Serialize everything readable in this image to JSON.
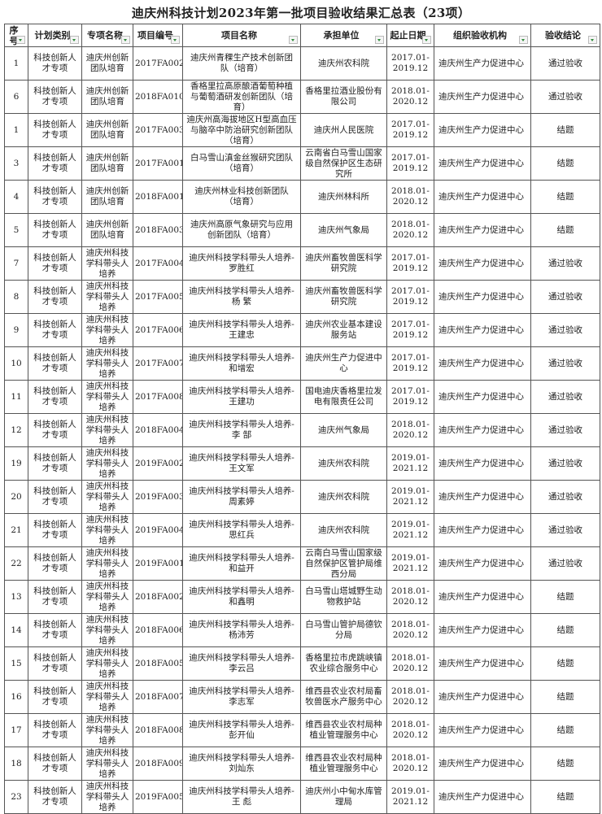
{
  "title": "迪庆州科技计划2023年第一批项目验收结果汇总表（23项）",
  "headers": [
    "序号",
    "计划类别",
    "专项名称",
    "项目编号",
    "项目名称",
    "承担单位",
    "起止日期",
    "组织验收机构",
    "验收结论"
  ],
  "filter_icon": "dropdown-filter-icon",
  "filter_color": "#2e8b3a",
  "rows": [
    {
      "no": "1",
      "category": "科技创新人才专项",
      "special": "迪庆州创新团队培育",
      "code": "2017FA002",
      "name": "迪庆州青稞生产技术创新团队（培育）",
      "unit": "迪庆州农科院",
      "date": "2017.01-2019.12",
      "org": "迪庆州生产力促进中心",
      "result": "通过验收"
    },
    {
      "no": "6",
      "category": "科技创新人才专项",
      "special": "迪庆州创新团队培育",
      "code": "2018FA010",
      "name": "香格里拉高原酿酒葡萄种植与葡萄酒研发创新团队（培育）",
      "unit": "香格里拉酒业股份有限公司",
      "date": "2018.01-2020.12",
      "org": "迪庆州生产力促进中心",
      "result": "通过验收"
    },
    {
      "no": "1",
      "category": "科技创新人才专项",
      "special": "迪庆州创新团队培育",
      "code": "2017FA003",
      "name": "迪庆州高海拔地区H型高血压与脑卒中防治研究创新团队（培育）",
      "unit": "迪庆州人民医院",
      "date": "2017.01-2019.12",
      "org": "迪庆州生产力促进中心",
      "result": "结题"
    },
    {
      "no": "3",
      "category": "科技创新人才专项",
      "special": "迪庆州创新团队培育",
      "code": "2017FA001",
      "name": "白马雪山滇金丝猴研究团队（培育）",
      "unit": "云南省白马雪山国家级自然保护区生态研究所",
      "date": "2017.01-2019.12",
      "org": "迪庆州生产力促进中心",
      "result": "结题"
    },
    {
      "no": "4",
      "category": "科技创新人才专项",
      "special": "迪庆州创新团队培育",
      "code": "2018FA001",
      "name": "迪庆州林业科技创新团队（培育）",
      "unit": "迪庆州林科所",
      "date": "2018.01-2020.12",
      "org": "迪庆州生产力促进中心",
      "result": "结题"
    },
    {
      "no": "5",
      "category": "科技创新人才专项",
      "special": "迪庆州创新团队培育",
      "code": "2018FA003",
      "name": "迪庆州高原气象研究与应用创新团队（培育）",
      "unit": "迪庆州气象局",
      "date": "2018.01-2020.12",
      "org": "迪庆州生产力促进中心",
      "result": "结题"
    },
    {
      "no": "7",
      "category": "科技创新人才专项",
      "special": "迪庆州科技学科带头人培养",
      "code": "2017FA004",
      "name": "迪庆州科技学科带头人培养-罗胜红",
      "unit": "迪庆州畜牧兽医科学研究院",
      "date": "2017.01-2019.12",
      "org": "迪庆州生产力促进中心",
      "result": "通过验收"
    },
    {
      "no": "8",
      "category": "科技创新人才专项",
      "special": "迪庆州科技学科带头人培养",
      "code": "2017FA005",
      "name": "迪庆州科技学科带头人培养-杨 繁",
      "unit": "迪庆州畜牧兽医科学研究院",
      "date": "2017.01-2019.12",
      "org": "迪庆州生产力促进中心",
      "result": "通过验收"
    },
    {
      "no": "9",
      "category": "科技创新人才专项",
      "special": "迪庆州科技学科带头人培养",
      "code": "2017FA006",
      "name": "迪庆州科技学科带头人培养-王建忠",
      "unit": "迪庆州农业基本建设服务站",
      "date": "2017.01-2019.12",
      "org": "迪庆州生产力促进中心",
      "result": "通过验收"
    },
    {
      "no": "10",
      "category": "科技创新人才专项",
      "special": "迪庆州科技学科带头人培养",
      "code": "2017FA007",
      "name": "迪庆州科技学科带头人培养-和增宏",
      "unit": "迪庆州生产力促进中心",
      "date": "2017.01-2019.12",
      "org": "迪庆州生产力促进中心",
      "result": "通过验收"
    },
    {
      "no": "11",
      "category": "科技创新人才专项",
      "special": "迪庆州科技学科带头人培养",
      "code": "2017FA008",
      "name": "迪庆州科技学科带头人培养-王建功",
      "unit": "国电迪庆香格里拉发电有限责任公司",
      "date": "2017.01-2019.12",
      "org": "迪庆州生产力促进中心",
      "result": "通过验收"
    },
    {
      "no": "12",
      "category": "科技创新人才专项",
      "special": "迪庆州科技学科带头人培养",
      "code": "2018FA004",
      "name": "迪庆州科技学科带头人培养-李 郜",
      "unit": "迪庆州气象局",
      "date": "2018.01-2020.12",
      "org": "迪庆州生产力促进中心",
      "result": "通过验收"
    },
    {
      "no": "19",
      "category": "科技创新人才专项",
      "special": "迪庆州科技学科带头人培养",
      "code": "2019FA002",
      "name": "迪庆州科技学科带头人培养-王文军",
      "unit": "迪庆州农科院",
      "date": "2019.01-2021.12",
      "org": "迪庆州生产力促进中心",
      "result": "通过验收"
    },
    {
      "no": "20",
      "category": "科技创新人才专项",
      "special": "迪庆州科技学科带头人培养",
      "code": "2019FA003",
      "name": "迪庆州科技学科带头人培养-周素婷",
      "unit": "迪庆州农科院",
      "date": "2019.01-2021.12",
      "org": "迪庆州生产力促进中心",
      "result": "通过验收"
    },
    {
      "no": "21",
      "category": "科技创新人才专项",
      "special": "迪庆州科技学科带头人培养",
      "code": "2019FA004",
      "name": "迪庆州科技学科带头人培养-思红兵",
      "unit": "迪庆州农科院",
      "date": "2019.01-2021.12",
      "org": "迪庆州生产力促进中心",
      "result": "通过验收"
    },
    {
      "no": "22",
      "category": "科技创新人才专项",
      "special": "迪庆州科技学科带头人培养",
      "code": "2019FA001",
      "name": "迪庆州科技学科带头人培养-和益开",
      "unit": "云南白马雪山国家级自然保护区管护局维西分局",
      "date": "2019.01-2021.12",
      "org": "迪庆州生产力促进中心",
      "result": "通过验收"
    },
    {
      "no": "13",
      "category": "科技创新人才专项",
      "special": "迪庆州科技学科带头人培养",
      "code": "2018FA002",
      "name": "迪庆州科技学科带头人培养-和鑫明",
      "unit": "白马雪山塔城野生动物救护站",
      "date": "2018.01-2020.12",
      "org": "迪庆州生产力促进中心",
      "result": "结题"
    },
    {
      "no": "14",
      "category": "科技创新人才专项",
      "special": "迪庆州科技学科带头人培养",
      "code": "2018FA006",
      "name": "迪庆州科技学科带头人培养-杨沛芳",
      "unit": "白马雪山管护局德钦分局",
      "date": "2018.01-2020.12",
      "org": "迪庆州生产力促进中心",
      "result": "结题"
    },
    {
      "no": "15",
      "category": "科技创新人才专项",
      "special": "迪庆州科技学科带头人培养",
      "code": "2018FA005",
      "name": "迪庆州科技学科带头人培养-李云吕",
      "unit": "香格里拉市虎跳峡镇农业综合服务中心",
      "date": "2018.01-2020.12",
      "org": "迪庆州生产力促进中心",
      "result": "结题"
    },
    {
      "no": "16",
      "category": "科技创新人才专项",
      "special": "迪庆州科技学科带头人培养",
      "code": "2018FA007",
      "name": "迪庆州科技学科带头人培养-李志军",
      "unit": "维西县农业农村局畜牧兽医水产服务中心",
      "date": "2018.01-2020.12",
      "org": "迪庆州生产力促进中心",
      "result": "结题"
    },
    {
      "no": "17",
      "category": "科技创新人才专项",
      "special": "迪庆州科技学科带头人培养",
      "code": "2018FA008",
      "name": "迪庆州科技学科带头人培养-彭开仙",
      "unit": "维西县农业农村局种植业管理服务中心",
      "date": "2018.01-2020.12",
      "org": "迪庆州生产力促进中心",
      "result": "结题"
    },
    {
      "no": "18",
      "category": "科技创新人才专项",
      "special": "迪庆州科技学科带头人培养",
      "code": "2018FA009",
      "name": "迪庆州科技学科带头人培养-刘灿东",
      "unit": "维西县农业农村局种植业管理服务中心",
      "date": "2018.01-2020.12",
      "org": "迪庆州生产力促进中心",
      "result": "结题"
    },
    {
      "no": "23",
      "category": "科技创新人才专项",
      "special": "迪庆州科技学科带头人培养",
      "code": "2019FA005",
      "name": "迪庆州科技学科带头人培养-王 彪",
      "unit": "迪庆州小中甸水库管理局",
      "date": "2019.01-2021.12",
      "org": "迪庆州生产力促进中心",
      "result": "结题"
    }
  ]
}
